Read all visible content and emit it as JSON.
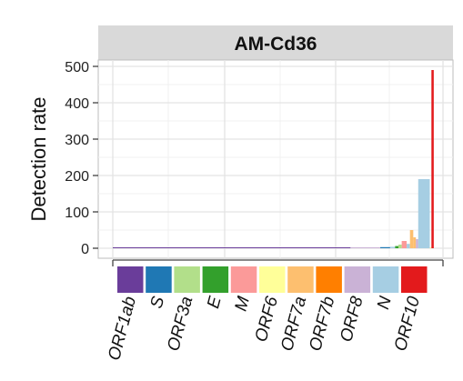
{
  "chart_data": {
    "type": "bar",
    "title": "AM-Cd36",
    "ylabel": "Detection rate",
    "xlabel": "",
    "ylim": [
      0,
      510
    ],
    "yticks": [
      0,
      100,
      200,
      300,
      400,
      500
    ],
    "grid": true,
    "genes": [
      {
        "name": "ORF1ab",
        "color": "#6a3d9a"
      },
      {
        "name": "S",
        "color": "#1f78b4"
      },
      {
        "name": "ORF3a",
        "color": "#b2df8a"
      },
      {
        "name": "E",
        "color": "#33a02c"
      },
      {
        "name": "M",
        "color": "#fb9a99"
      },
      {
        "name": "ORF6",
        "color": "#ffff99"
      },
      {
        "name": "ORF7a",
        "color": "#fdbf6f"
      },
      {
        "name": "ORF7b",
        "color": "#ff7f00"
      },
      {
        "name": "ORF8",
        "color": "#cab2d6"
      },
      {
        "name": "N",
        "color": "#a6cee3"
      },
      {
        "name": "ORF10",
        "color": "#e31a1c"
      }
    ],
    "bars": [
      {
        "x0": 0.0,
        "x1": 0.72,
        "value": 0.5,
        "gene": "ORF1ab"
      },
      {
        "x0": 0.72,
        "x1": 0.81,
        "value": 1,
        "gene": "ORF8"
      },
      {
        "x0": 0.81,
        "x1": 0.84,
        "value": 3,
        "gene": "S"
      },
      {
        "x0": 0.84,
        "x1": 0.855,
        "value": 4,
        "gene": "N"
      },
      {
        "x0": 0.855,
        "x1": 0.865,
        "value": 6,
        "gene": "E"
      },
      {
        "x0": 0.865,
        "x1": 0.875,
        "value": 10,
        "gene": "ORF3a"
      },
      {
        "x0": 0.875,
        "x1": 0.89,
        "value": 20,
        "gene": "M"
      },
      {
        "x0": 0.89,
        "x1": 0.9,
        "value": 12,
        "gene": "N"
      },
      {
        "x0": 0.9,
        "x1": 0.91,
        "value": 50,
        "gene": "ORF7a"
      },
      {
        "x0": 0.91,
        "x1": 0.918,
        "value": 30,
        "gene": "ORF7a"
      },
      {
        "x0": 0.918,
        "x1": 0.925,
        "value": 25,
        "gene": "ORF8"
      },
      {
        "x0": 0.925,
        "x1": 0.96,
        "value": 190,
        "gene": "N"
      },
      {
        "x0": 0.96,
        "x1": 0.965,
        "value": 2,
        "gene": "ORF6"
      },
      {
        "x0": 0.965,
        "x1": 0.972,
        "value": 490,
        "gene": "ORF10"
      }
    ]
  }
}
